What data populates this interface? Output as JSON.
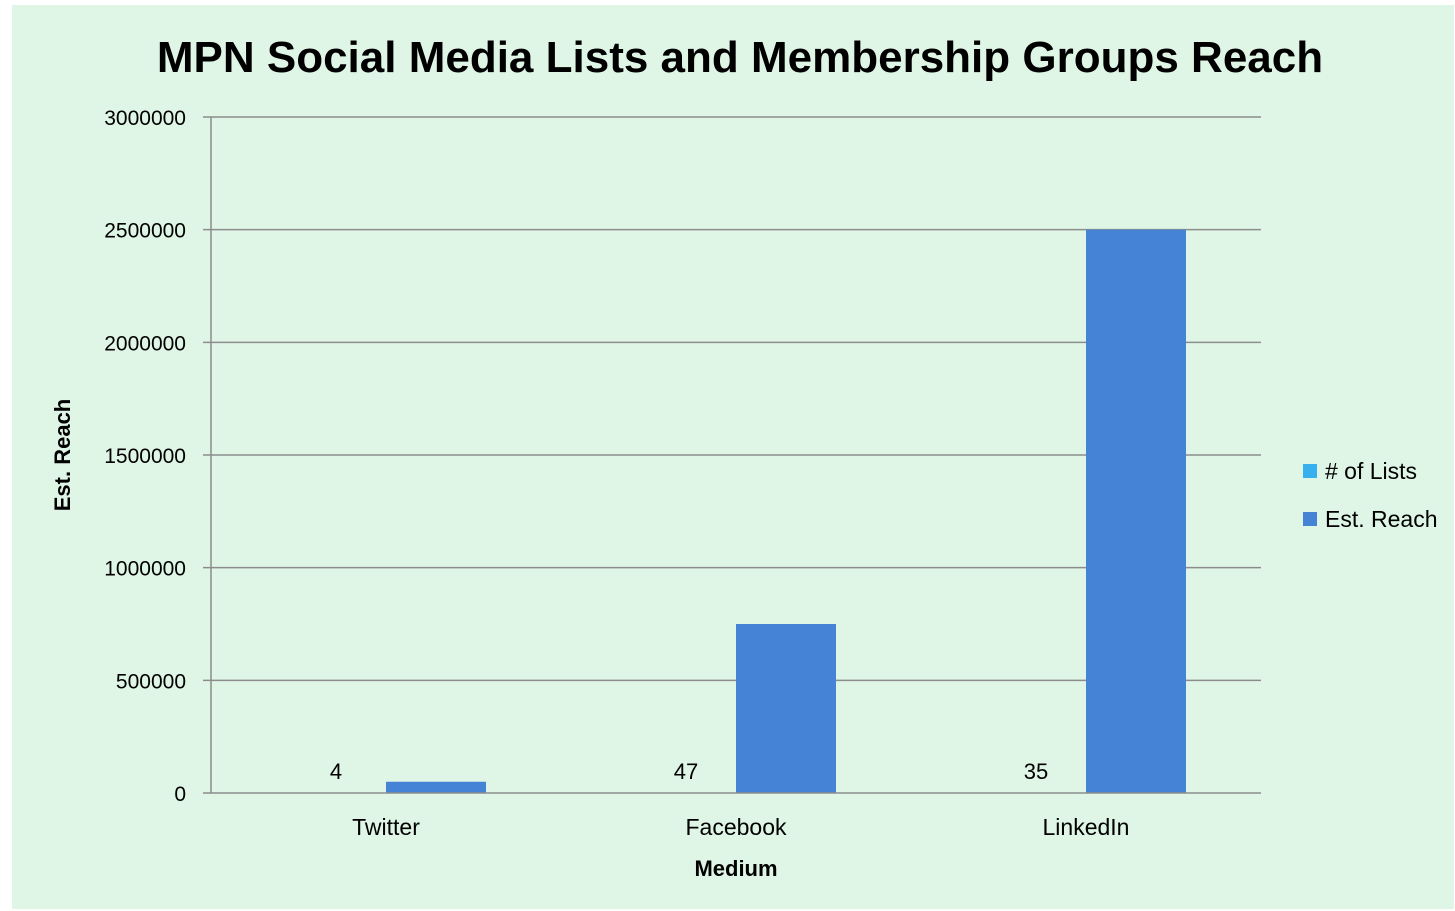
{
  "chart_data": {
    "type": "bar",
    "title": "MPN Social Media Lists and Membership Groups Reach",
    "xlabel": "Medium",
    "ylabel": "Est. Reach",
    "categories": [
      "Twitter",
      "Facebook",
      "LinkedIn"
    ],
    "series": [
      {
        "name": "# of Lists",
        "values": [
          4,
          47,
          35
        ],
        "color": "#36b0ef",
        "show_labels": true
      },
      {
        "name": "Est. Reach",
        "values": [
          50000,
          750000,
          2500000
        ],
        "color": "#4583d6",
        "show_labels": false
      }
    ],
    "ylim": [
      0,
      3000000
    ],
    "yticks": [
      0,
      500000,
      1000000,
      1500000,
      2000000,
      2500000,
      3000000
    ],
    "ytick_labels": [
      "0",
      "500000",
      "1000000",
      "1500000",
      "2000000",
      "2500000",
      "3000000"
    ],
    "grid": true,
    "legend_position": "right",
    "background": "#dff5e5"
  }
}
